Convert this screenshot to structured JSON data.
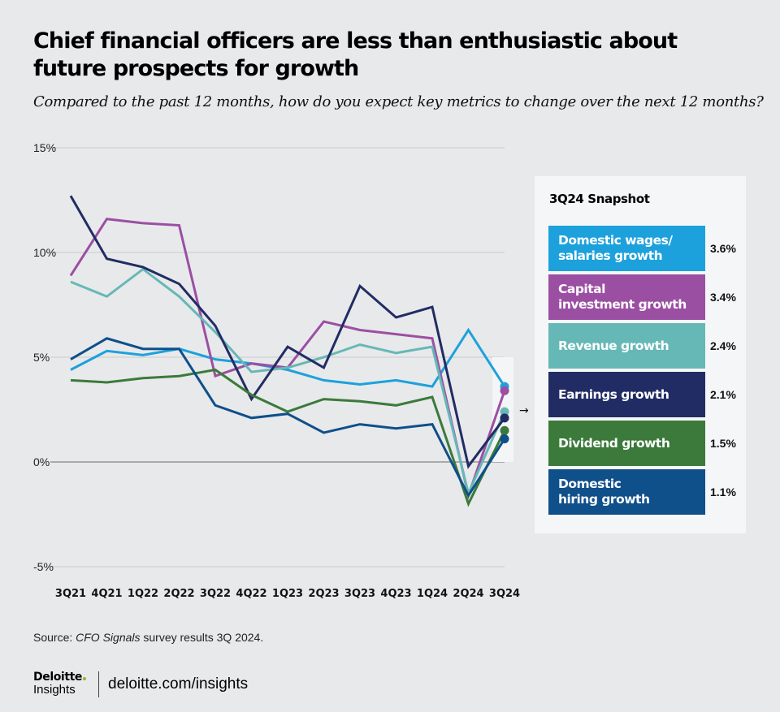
{
  "header": {
    "title": "Chief financial officers are less than enthusiastic about future prospects for growth",
    "subtitle": "Compared to the past 12 months, how do you expect key metrics to change over the next 12 months?"
  },
  "chart_data": {
    "type": "line",
    "x": [
      "3Q21",
      "4Q21",
      "1Q22",
      "2Q22",
      "3Q22",
      "4Q22",
      "1Q23",
      "2Q23",
      "3Q23",
      "4Q23",
      "1Q24",
      "2Q24",
      "3Q24"
    ],
    "ylim": [
      -5,
      15
    ],
    "yticks": [
      15,
      10,
      5,
      0,
      -5
    ],
    "ytick_labels": [
      "15%",
      "10%",
      "5%",
      "0%",
      "-5%"
    ],
    "grid": true,
    "series": [
      {
        "name": "Domestic wages/ salaries growth",
        "color": "#1da1dc",
        "values": [
          4.4,
          5.3,
          5.1,
          5.4,
          4.9,
          4.7,
          4.4,
          3.9,
          3.7,
          3.9,
          3.6,
          6.3,
          3.6
        ]
      },
      {
        "name": "Capital investment growth",
        "color": "#9b4fa3",
        "values": [
          8.9,
          11.6,
          11.4,
          11.3,
          4.1,
          4.7,
          4.5,
          6.7,
          6.3,
          6.1,
          5.9,
          -1.6,
          3.4
        ]
      },
      {
        "name": "Revenue growth",
        "color": "#66b8b6",
        "values": [
          8.6,
          7.9,
          9.2,
          7.9,
          6.2,
          4.3,
          4.5,
          5.0,
          5.6,
          5.2,
          5.5,
          -1.5,
          2.4
        ]
      },
      {
        "name": "Earnings growth",
        "color": "#222c64",
        "values": [
          12.7,
          9.7,
          9.3,
          8.5,
          6.5,
          3.0,
          5.5,
          4.5,
          8.4,
          6.9,
          7.4,
          -0.2,
          2.1
        ]
      },
      {
        "name": "Dividend growth",
        "color": "#3b7a3a",
        "values": [
          3.9,
          3.8,
          4.0,
          4.1,
          4.4,
          3.2,
          2.4,
          3.0,
          2.9,
          2.7,
          3.1,
          -2.0,
          1.5
        ]
      },
      {
        "name": "Domestic hiring growth",
        "color": "#0f4f8a",
        "values": [
          4.9,
          5.9,
          5.4,
          5.4,
          2.7,
          2.1,
          2.3,
          1.4,
          1.8,
          1.6,
          1.8,
          -1.6,
          1.1
        ]
      }
    ]
  },
  "snapshot": {
    "title": "3Q24 Snapshot",
    "arrow": "→",
    "items": [
      {
        "label": "Domestic wages/\nsalaries growth",
        "value": "3.6%",
        "color": "#1da1dc"
      },
      {
        "label": "Capital\ninvestment growth",
        "value": "3.4%",
        "color": "#9b4fa3"
      },
      {
        "label": "Revenue growth",
        "value": "2.4%",
        "color": "#66b8b6"
      },
      {
        "label": "Earnings growth",
        "value": "2.1%",
        "color": "#222c64"
      },
      {
        "label": "Dividend growth",
        "value": "1.5%",
        "color": "#3b7a3a"
      },
      {
        "label": "Domestic\nhiring growth",
        "value": "1.1%",
        "color": "#0f4f8a"
      }
    ]
  },
  "footer": {
    "source_prefix": "Source: ",
    "source_italic": "CFO Signals",
    "source_suffix": " survey results 3Q 2024.",
    "brand_name": "Deloitte",
    "brand_sub": "Insights",
    "url": "deloitte.com/insights"
  }
}
